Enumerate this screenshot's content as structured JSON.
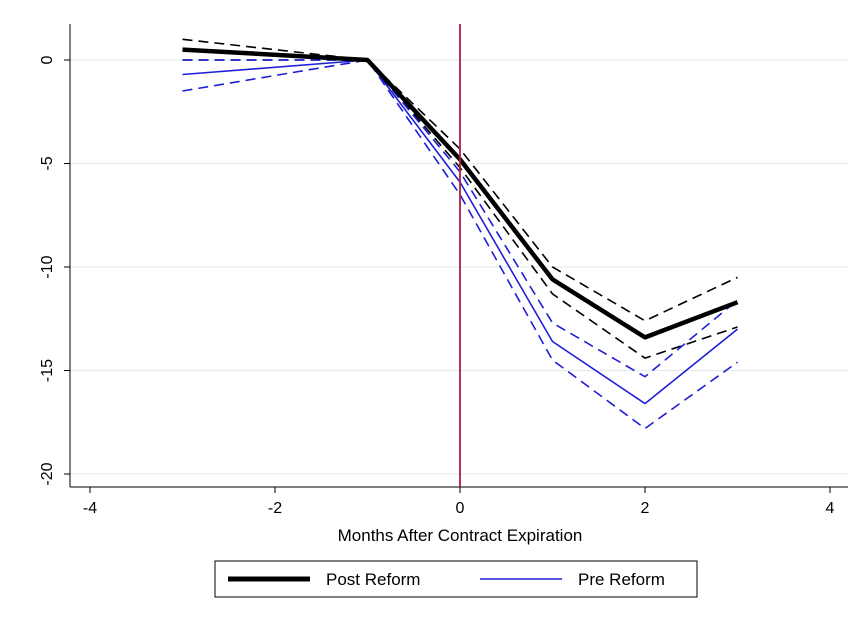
{
  "chart_data": {
    "type": "line",
    "xlabel": "Months After Contract Expiration",
    "ylabel": "",
    "xlim": [
      -4,
      4
    ],
    "ylim": [
      -20,
      1.5
    ],
    "x_ticks": [
      -4,
      -2,
      0,
      2,
      4
    ],
    "y_ticks": [
      0,
      -5,
      -10,
      -15,
      -20
    ],
    "grid": "horizontal",
    "vertical_reference_line": {
      "x": 0,
      "color": "#b01e3c"
    },
    "legend_position": "bottom",
    "series": [
      {
        "name": "Post Reform",
        "color": "#000000",
        "style": "solid-thick",
        "x": [
          -3,
          -1,
          0,
          1,
          2,
          3
        ],
        "y": [
          0.5,
          0.0,
          -4.8,
          -10.6,
          -13.4,
          -11.7
        ]
      },
      {
        "name": "Pre Reform",
        "color": "#1f1fd8",
        "style": "solid",
        "x": [
          -3,
          -1,
          0,
          1,
          2,
          3
        ],
        "y": [
          -0.7,
          0.0,
          -5.9,
          -13.6,
          -16.6,
          -13.0
        ]
      }
    ],
    "confidence_bands": [
      {
        "color": "#000000",
        "x": [
          -3,
          -1,
          0,
          1,
          2,
          3
        ],
        "upper": [
          1.0,
          0.0,
          -4.3,
          -10.0,
          -12.6,
          -10.5
        ],
        "lower": [
          0.0,
          0.0,
          -5.2,
          -11.3,
          -14.4,
          -12.9
        ]
      },
      {
        "color": "#1f1fd8",
        "x": [
          -3,
          -1,
          0,
          1,
          2,
          3
        ],
        "upper": [
          0.0,
          0.0,
          -5.4,
          -12.7,
          -15.3,
          -11.6
        ],
        "lower": [
          -1.5,
          0.0,
          -6.5,
          -14.5,
          -17.8,
          -14.6
        ]
      }
    ]
  }
}
